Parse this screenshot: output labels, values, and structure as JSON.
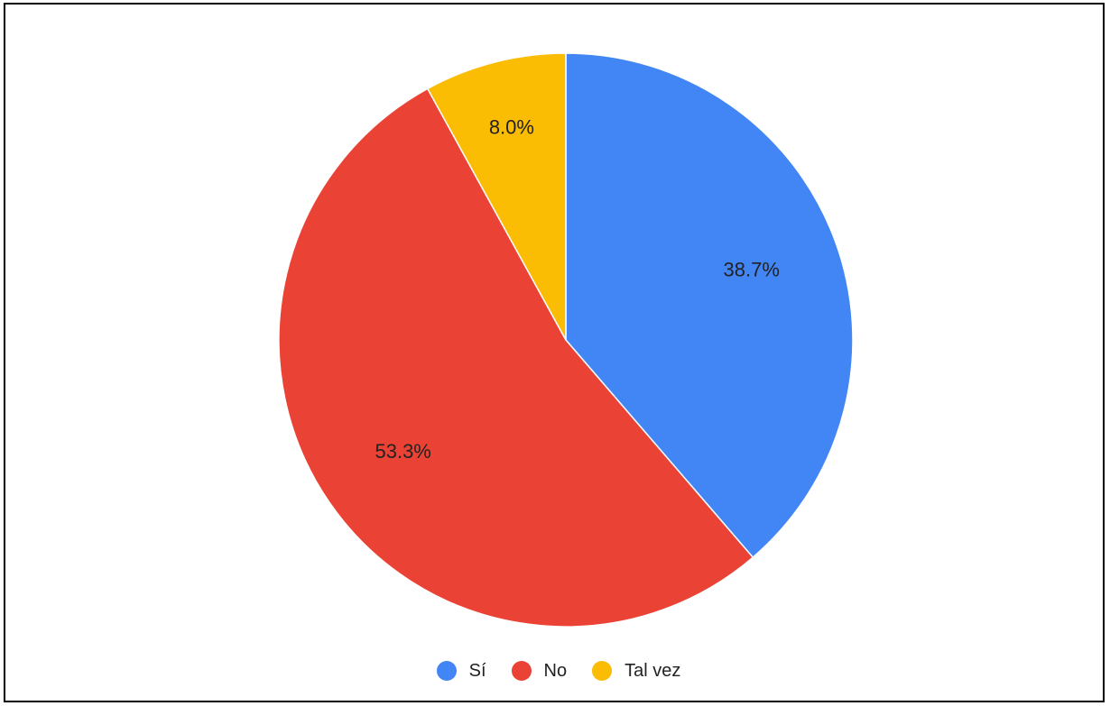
{
  "chart_data": {
    "type": "pie",
    "title": "",
    "legend_position": "bottom",
    "slices": [
      {
        "label": "Sí",
        "value": 38.7,
        "display": "38.7%",
        "color": "#4285F4"
      },
      {
        "label": "No",
        "value": 53.3,
        "display": "53.3%",
        "color": "#EA4335"
      },
      {
        "label": "Tal vez",
        "value": 8.0,
        "display": "8.0%",
        "color": "#FBBC04"
      }
    ]
  }
}
